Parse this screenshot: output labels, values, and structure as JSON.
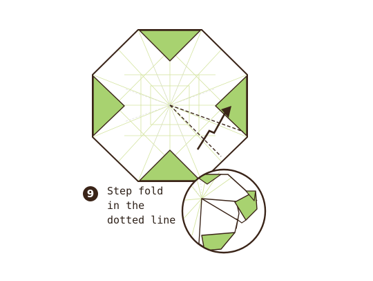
{
  "step": {
    "number": "9",
    "caption_lines": [
      "Step fold",
      "in the",
      "dotted line"
    ]
  },
  "colors": {
    "paper_front": "#a8d270",
    "paper_back": "#ffffff",
    "outline": "#3a2418",
    "crease": "#d8e6a8",
    "guide": "#d0d0d0"
  },
  "icons": [
    "step-fold-arrow-icon",
    "dotted-fold-line",
    "magnifier-circle"
  ]
}
